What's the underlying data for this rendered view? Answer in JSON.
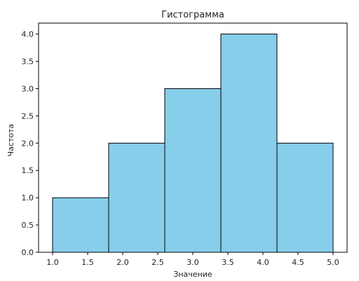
{
  "chart_data": {
    "type": "bar",
    "title": "Гистограмма",
    "xlabel": "Значение",
    "ylabel": "Частота",
    "bins": [
      {
        "x0": 1.0,
        "x1": 1.8,
        "value": 1
      },
      {
        "x0": 1.8,
        "x1": 2.6,
        "value": 2
      },
      {
        "x0": 2.6,
        "x1": 3.4,
        "value": 3
      },
      {
        "x0": 3.4,
        "x1": 4.2,
        "value": 4
      },
      {
        "x0": 4.2,
        "x1": 5.0,
        "value": 2
      }
    ],
    "xlim": [
      0.8,
      5.2
    ],
    "ylim": [
      0,
      4.2
    ],
    "xticks": [
      1.0,
      1.5,
      2.0,
      2.5,
      3.0,
      3.5,
      4.0,
      4.5,
      5.0
    ],
    "xtick_labels": [
      "1.0",
      "1.5",
      "2.0",
      "2.5",
      "3.0",
      "3.5",
      "4.0",
      "4.5",
      "5.0"
    ],
    "yticks": [
      0.0,
      0.5,
      1.0,
      1.5,
      2.0,
      2.5,
      3.0,
      3.5,
      4.0
    ],
    "ytick_labels": [
      "0.0",
      "0.5",
      "1.0",
      "1.5",
      "2.0",
      "2.5",
      "3.0",
      "3.5",
      "4.0"
    ],
    "grid": false,
    "bar_color": "#87ceeb",
    "edge_color": "#000000"
  }
}
